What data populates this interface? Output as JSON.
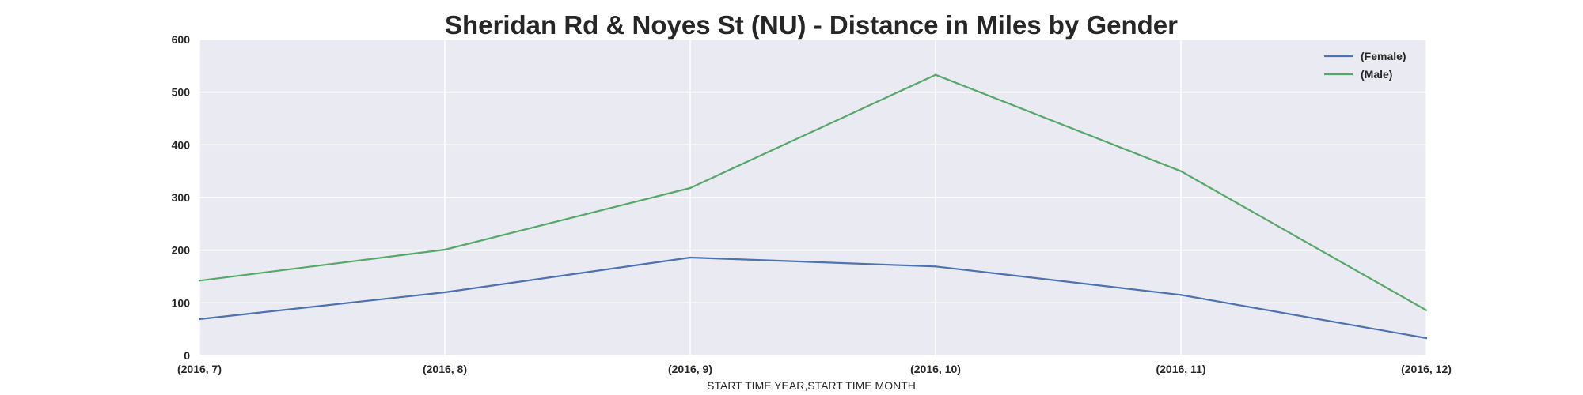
{
  "chart_data": {
    "type": "line",
    "title": "Sheridan Rd & Noyes St (NU) - Distance in Miles by Gender",
    "xlabel": "START TIME YEAR,START TIME MONTH",
    "ylabel": "",
    "categories": [
      "(2016, 7)",
      "(2016, 8)",
      "(2016, 9)",
      "(2016, 10)",
      "(2016, 11)",
      "(2016, 12)"
    ],
    "ylim": [
      0,
      600
    ],
    "yticks": [
      "0",
      "100",
      "200",
      "300",
      "400",
      "500",
      "600"
    ],
    "grid": true,
    "legend_position": "top-right",
    "series": [
      {
        "name": "(Female)",
        "color": "#4c72b0",
        "values": [
          69,
          120,
          186,
          169,
          115,
          33
        ]
      },
      {
        "name": "(Male)",
        "color": "#55a868",
        "values": [
          142,
          201,
          318,
          533,
          350,
          86
        ]
      }
    ],
    "colors": {
      "plot_background": "#eaeaf2",
      "grid": "#ffffff",
      "text": "#262626"
    }
  }
}
